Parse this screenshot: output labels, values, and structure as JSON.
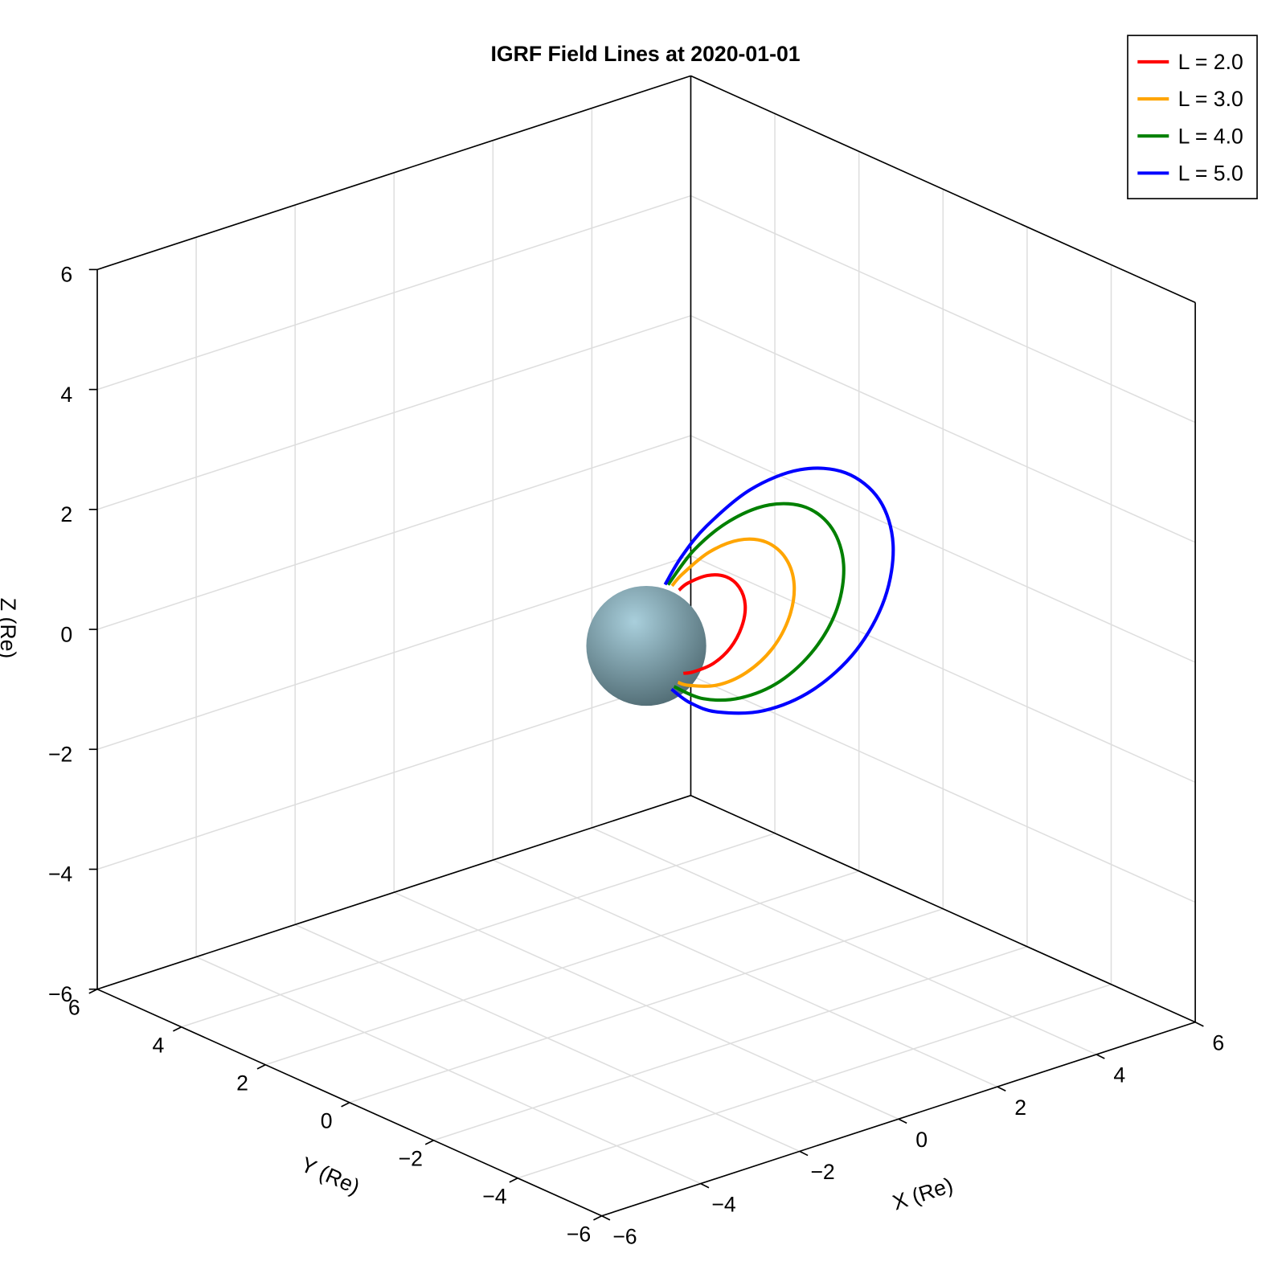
{
  "chart_data": {
    "type": "line3d",
    "title": "IGRF Field Lines at 2020-01-01",
    "xlabel": "X (Re)",
    "ylabel": "Y (Re)",
    "zlabel": "Z (Re)",
    "xlim": [
      -6,
      6
    ],
    "ylim": [
      -6,
      6
    ],
    "zlim": [
      -6,
      6
    ],
    "xticks": [
      {
        "value": -6,
        "label": "−6"
      },
      {
        "value": -4,
        "label": "−4"
      },
      {
        "value": -2,
        "label": "−2"
      },
      0,
      2,
      4,
      6
    ],
    "yticks": [
      {
        "value": -6,
        "label": "−6"
      },
      {
        "value": -4,
        "label": "−4"
      },
      {
        "value": -2,
        "label": "−2"
      },
      0,
      2,
      4,
      6
    ],
    "zticks": [
      {
        "value": -6,
        "label": "−6"
      },
      {
        "value": -4,
        "label": "−4"
      },
      {
        "value": -2,
        "label": "−2"
      },
      0,
      2,
      4,
      6
    ],
    "grid": true,
    "legend": "top-right",
    "sphere": {
      "radius": 1,
      "color": "#a9cfdc"
    },
    "series": [
      {
        "name": "L = 2.0",
        "color": "#ff0000",
        "x": [
          0.75,
          0.95,
          1.35,
          1.7,
          1.93,
          2.0,
          1.88,
          1.61,
          1.24,
          0.84,
          0.66
        ],
        "y": [
          0,
          0,
          0,
          0,
          0,
          0,
          0,
          0,
          0,
          0,
          0
        ],
        "z": [
          -0.66,
          -0.69,
          -0.66,
          -0.49,
          -0.2,
          0.14,
          0.47,
          0.72,
          0.84,
          0.82,
          0.75
        ]
      },
      {
        "name": "L = 3.0",
        "color": "#ffa500",
        "x": [
          0.64,
          0.86,
          1.43,
          2.02,
          2.55,
          2.89,
          2.99,
          2.82,
          2.42,
          1.87,
          1.27,
          0.73,
          0.52
        ],
        "y": [
          0,
          0,
          0,
          0,
          0,
          0,
          0,
          0,
          0,
          0,
          0,
          0,
          0
        ],
        "z": [
          -0.78,
          -0.89,
          -1.04,
          -0.99,
          -0.73,
          -0.3,
          0.21,
          0.7,
          1.08,
          1.26,
          1.22,
          1.0,
          0.86
        ]
      },
      {
        "name": "L = 4.0",
        "color": "#008000",
        "x": [
          0.56,
          1.15,
          1.9,
          2.7,
          3.4,
          3.86,
          3.99,
          3.76,
          3.23,
          2.49,
          1.69,
          0.97,
          0.44
        ],
        "y": [
          0,
          0,
          0,
          0,
          0,
          0,
          0,
          0,
          0,
          0,
          0,
          0,
          0
        ],
        "z": [
          -0.83,
          -1.19,
          -1.38,
          -1.32,
          -0.97,
          -0.41,
          0.28,
          0.94,
          1.44,
          1.68,
          1.63,
          1.34,
          0.9
        ]
      },
      {
        "name": "L = 5.0",
        "color": "#0000ff",
        "x": [
          0.51,
          0.89,
          1.44,
          2.38,
          3.37,
          4.24,
          4.82,
          4.99,
          4.71,
          4.03,
          3.11,
          2.11,
          1.22,
          0.72,
          0.38
        ],
        "y": [
          0,
          0,
          0,
          0,
          0,
          0,
          0,
          0,
          0,
          0,
          0,
          0,
          0,
          0,
          0
        ],
        "z": [
          -0.86,
          -1.19,
          -1.49,
          -1.72,
          -1.64,
          -1.22,
          -0.51,
          0.35,
          1.17,
          1.8,
          2.1,
          2.04,
          1.67,
          1.3,
          0.92
        ]
      }
    ]
  }
}
